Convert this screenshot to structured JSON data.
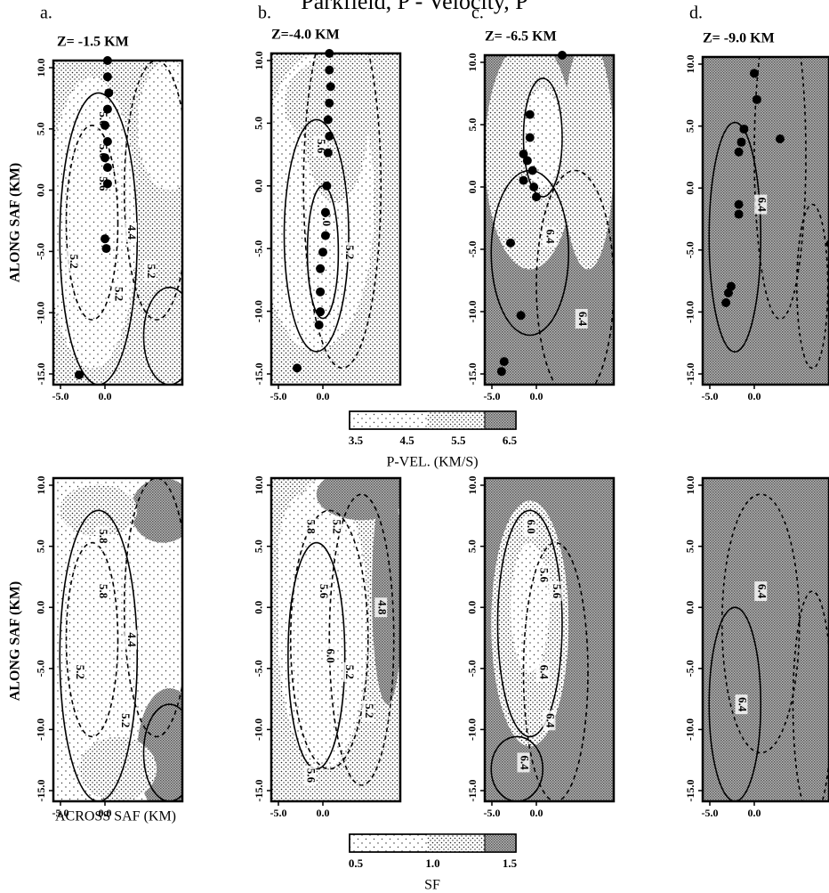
{
  "title": "Parkfield, P - Velocity, P",
  "panel_letters": [
    "a.",
    "b.",
    "c.",
    "d."
  ],
  "depths": [
    "Z= -1.5 KM",
    "Z=-4.0 KM",
    "Z= -6.5 KM",
    "Z= -9.0 KM"
  ],
  "y_axis_label": "ALONG SAF (KM)",
  "x_axis_label": "ACROSS SAF (KM)",
  "y_tick_labels": [
    "10.0",
    "5.0",
    "0.0",
    "-5.0",
    "-10.0",
    "-15.0"
  ],
  "x_tick_labels": [
    "-5.0",
    "0.0"
  ],
  "velocity_scale": {
    "labels": [
      "3.5",
      "4.5",
      "5.5",
      "6.5"
    ],
    "title": "P-VEL. (KM/S)"
  },
  "sf_scale": {
    "labels": [
      "0.5",
      "1.0",
      "1.5"
    ],
    "title": "SF"
  },
  "contour_labels": {
    "velocity": [
      [
        "5.6",
        "5.6",
        "5.6",
        "4.4",
        "5.2",
        "5.2",
        "5.2"
      ],
      [
        "5.6",
        "6.0",
        "5.2"
      ],
      [
        "6.4",
        "6.4"
      ],
      [
        "6.4"
      ]
    ],
    "sf": [
      [
        "5.8",
        "5.8",
        "4.4",
        "5.2",
        "5.2"
      ],
      [
        "5.8",
        "5.2",
        "5.6",
        "6.0",
        "5.2",
        "4.8",
        "5.2",
        "5.6"
      ],
      [
        "6.0",
        "5.6",
        "5.6",
        "6.4",
        "6.4",
        "6.4"
      ],
      [
        "6.4",
        "6.4"
      ]
    ]
  }
}
